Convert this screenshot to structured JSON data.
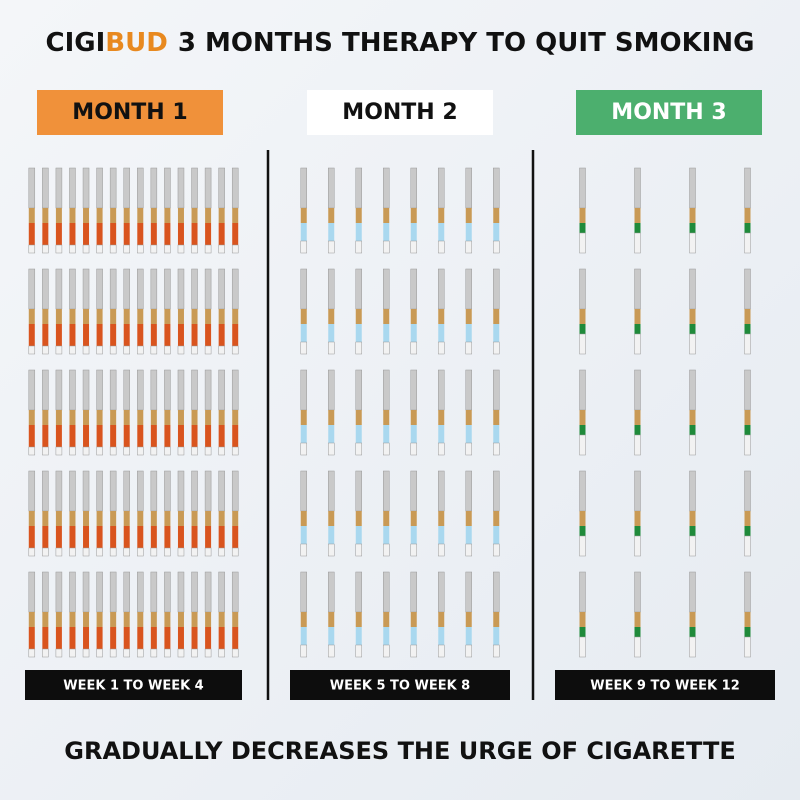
{
  "header": {
    "brand_dark": "CIGI",
    "brand_accent": "BUD",
    "title": "3 MONTHS THERAPY TO QUIT SMOKING"
  },
  "panels": [
    {
      "label": "MONTH 1",
      "label_bg": "#f0913a",
      "label_color": "#111111",
      "cigarettes": 80,
      "band_color": "#d9541e",
      "weeks": "WEEK 1 TO WEEK 4"
    },
    {
      "label": "MONTH 2",
      "label_bg": "#ffffff",
      "label_color": "#111111",
      "cigarettes": 40,
      "band_color": "#a9d8ef",
      "weeks": "WEEK 5 TO WEEK 8"
    },
    {
      "label": "MONTH 3",
      "label_bg": "#4caf6e",
      "label_color": "#ffffff",
      "cigarettes": 20,
      "band_color": "#1f8a3a",
      "weeks": "WEEK 9 TO WEEK 12"
    }
  ],
  "footer": "GRADUALLY DECREASES THE URGE OF CIGARETTE"
}
